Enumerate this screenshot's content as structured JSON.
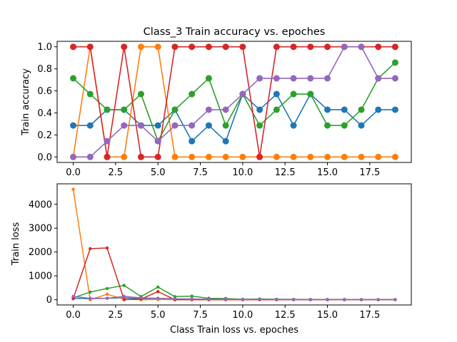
{
  "chart_data": [
    {
      "type": "line",
      "title": "Class_3 Train accuracy vs. epoches",
      "xlabel": "",
      "ylabel": "Train accuracy",
      "x": [
        0,
        1,
        2,
        3,
        4,
        5,
        6,
        7,
        8,
        9,
        10,
        11,
        12,
        13,
        14,
        15,
        16,
        17,
        18,
        19
      ],
      "xlim": [
        -0.95,
        19.95
      ],
      "ylim": [
        -0.05,
        1.05
      ],
      "xticks": [
        0,
        2.5,
        5,
        7.5,
        10,
        12.5,
        15,
        17.5
      ],
      "xtick_labels": [
        "0.0",
        "2.5",
        "5.0",
        "7.5",
        "10.0",
        "12.5",
        "15.0",
        "17.5"
      ],
      "yticks": [
        0,
        0.2,
        0.4,
        0.6,
        0.8,
        1.0
      ],
      "ytick_labels": [
        "0.0",
        "0.2",
        "0.4",
        "0.6",
        "0.8",
        "1.0"
      ],
      "marker": "large",
      "grid": false,
      "series": [
        {
          "color": "#1f77b4",
          "values": [
            0.286,
            0.286,
            0.429,
            0.429,
            0.286,
            0.286,
            0.429,
            0.143,
            0.286,
            0.143,
            0.571,
            0.429,
            0.571,
            0.286,
            0.571,
            0.429,
            0.429,
            0.286,
            0.429,
            0.429
          ]
        },
        {
          "color": "#ff7f0e",
          "values": [
            0,
            1,
            0,
            0,
            1,
            1,
            0,
            0,
            0,
            0,
            0,
            0,
            0,
            0,
            0,
            0,
            0,
            0,
            0,
            0
          ]
        },
        {
          "color": "#2ca02c",
          "values": [
            0.714,
            0.571,
            0.429,
            0.429,
            0.571,
            0.143,
            0.429,
            0.571,
            0.714,
            0.286,
            0.571,
            0.286,
            0.429,
            0.571,
            0.571,
            0.286,
            0.286,
            0.429,
            0.714,
            0.857
          ]
        },
        {
          "color": "#d62728",
          "values": [
            1,
            1,
            0,
            1,
            0,
            0,
            1,
            1,
            1,
            1,
            1,
            0,
            1,
            1,
            1,
            1,
            1,
            1,
            1,
            1
          ]
        },
        {
          "color": "#9467bd",
          "values": [
            0,
            0,
            0.143,
            0.286,
            0.286,
            0.143,
            0.286,
            0.286,
            0.429,
            0.429,
            0.571,
            0.714,
            0.714,
            0.714,
            0.714,
            0.714,
            1,
            1,
            0.714,
            0.714
          ]
        }
      ]
    },
    {
      "type": "line",
      "title": "",
      "xlabel": "Class Train loss vs. epoches",
      "ylabel": "Train loss",
      "x": [
        0,
        1,
        2,
        3,
        4,
        5,
        6,
        7,
        8,
        9,
        10,
        11,
        12,
        13,
        14,
        15,
        16,
        17,
        18,
        19
      ],
      "xlim": [
        -0.95,
        19.95
      ],
      "ylim": [
        -220,
        4860
      ],
      "xticks": [
        0,
        2.5,
        5,
        7.5,
        10,
        12.5,
        15,
        17.5
      ],
      "xtick_labels": [
        "0.0",
        "2.5",
        "5.0",
        "7.5",
        "10.0",
        "12.5",
        "15.0",
        "17.5"
      ],
      "yticks": [
        0,
        1000,
        2000,
        3000,
        4000
      ],
      "ytick_labels": [
        "0",
        "1000",
        "2000",
        "3000",
        "4000"
      ],
      "marker": "small",
      "grid": false,
      "series": [
        {
          "color": "#1f77b4",
          "values": [
            60,
            40,
            60,
            80,
            40,
            50,
            20,
            30,
            20,
            15,
            10,
            10,
            8,
            6,
            5,
            5,
            4,
            4,
            3,
            3
          ]
        },
        {
          "color": "#ff7f0e",
          "values": [
            4630,
            0,
            230,
            20,
            0,
            10,
            0,
            5,
            0,
            0,
            0,
            0,
            0,
            0,
            0,
            0,
            0,
            0,
            0,
            0
          ]
        },
        {
          "color": "#2ca02c",
          "values": [
            80,
            320,
            470,
            600,
            130,
            530,
            130,
            150,
            60,
            50,
            20,
            30,
            20,
            15,
            10,
            10,
            8,
            6,
            5,
            5
          ]
        },
        {
          "color": "#d62728",
          "values": [
            40,
            2140,
            2170,
            0,
            30,
            340,
            0,
            0,
            0,
            0,
            0,
            0,
            0,
            0,
            0,
            0,
            0,
            0,
            0,
            0
          ]
        },
        {
          "color": "#9467bd",
          "values": [
            140,
            60,
            60,
            140,
            80,
            60,
            40,
            30,
            20,
            15,
            10,
            10,
            8,
            6,
            5,
            5,
            4,
            4,
            3,
            3
          ]
        }
      ]
    }
  ]
}
